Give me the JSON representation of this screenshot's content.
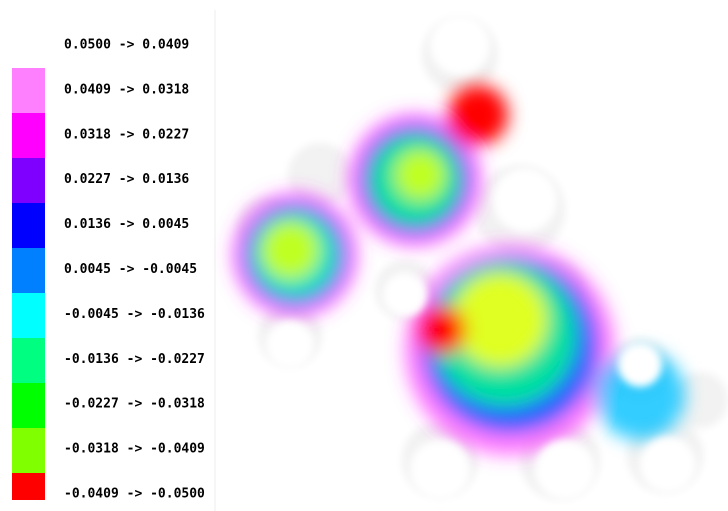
{
  "legend": {
    "entries": [
      {
        "label": "0.0500 ->  0.0409",
        "color": "#ffffff"
      },
      {
        "label": "0.0409 ->  0.0318",
        "color": "#ff80ff"
      },
      {
        "label": "0.0318 ->  0.0227",
        "color": "#ff00ff"
      },
      {
        "label": "0.0227 ->  0.0136",
        "color": "#8000ff"
      },
      {
        "label": "0.0136 ->  0.0045",
        "color": "#0000ff"
      },
      {
        "label": "0.0045 ->  -0.0045",
        "color": "#0080ff"
      },
      {
        "label": "-0.0045 ->  -0.0136",
        "color": "#00ffff"
      },
      {
        "label": "-0.0136 ->  -0.0227",
        "color": "#00ff80"
      },
      {
        "label": "-0.0227 ->  -0.0318",
        "color": "#00ff00"
      },
      {
        "label": "-0.0318 ->  -0.0409",
        "color": "#80ff00"
      },
      {
        "label": "-0.0409 ->  -0.0500",
        "color": "#ff0000"
      }
    ]
  }
}
